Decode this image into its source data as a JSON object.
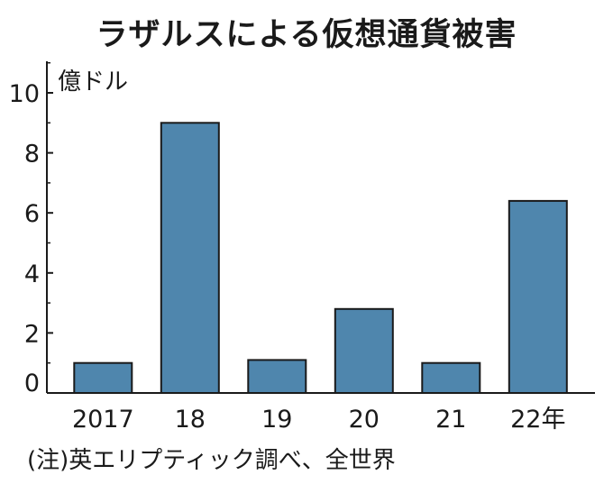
{
  "title": "ラザルスによる仮想通貨被害",
  "note": "(注)英エリプティック調べ、全世界",
  "chart_data": {
    "type": "bar",
    "title": "ラザルスによる仮想通貨被害",
    "ylabel": "億ドル",
    "xlabel": "",
    "categories": [
      "2017",
      "18",
      "19",
      "20",
      "21",
      "22年"
    ],
    "values": [
      1.0,
      9.0,
      1.1,
      2.8,
      1.0,
      6.4
    ],
    "ylim": [
      0,
      11
    ],
    "yticks": [
      0,
      2,
      4,
      6,
      8,
      10
    ],
    "bar_color": "#4f86ad",
    "bar_stroke": "#1a1a1a",
    "grid": false,
    "legend": "none"
  }
}
